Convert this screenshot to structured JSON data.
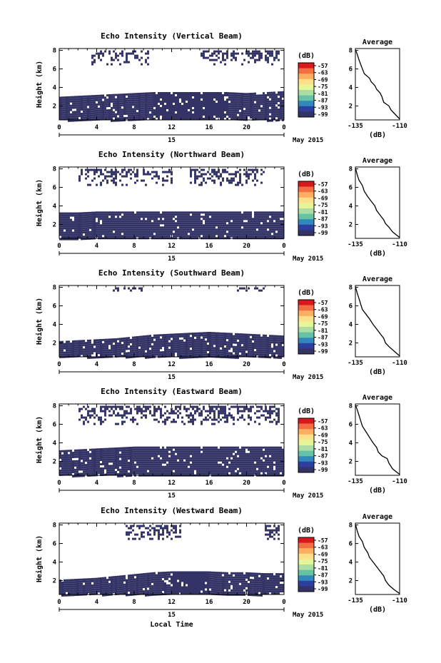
{
  "figure": {
    "xlabel": "Local Time",
    "date_label": "15",
    "month_label": "May 2015",
    "ylabel": "Height (km)",
    "colorbar_unit": "(dB)",
    "avg_title": "Average",
    "avg_xlabel": "(dB)"
  },
  "colorbar": {
    "tick_labels": [
      "-57",
      "-63",
      "-69",
      "-75",
      "-81",
      "-87",
      "-93",
      "-99"
    ],
    "colors": [
      "#d7191c",
      "#f46d43",
      "#fdae61",
      "#fee08b",
      "#e6f598",
      "#abdda4",
      "#66c2a5",
      "#3288bd",
      "#2c3e9e",
      "#333366"
    ]
  },
  "chart_data": [
    {
      "type": "heatmap",
      "title": "Echo Intensity (Vertical Beam)",
      "ylabel": "Height (km)",
      "x_ticks": [
        "0",
        "4",
        "8",
        "12",
        "16",
        "20",
        "0"
      ],
      "y_ticks": [
        "8",
        "6",
        "4",
        "2"
      ],
      "xlim": [
        0,
        24
      ],
      "ylim": [
        0.5,
        8.2
      ],
      "dominant_value_dB": -99,
      "low_layer_top_km": [
        3.0,
        3.1,
        3.2,
        3.3,
        3.4,
        3.5,
        3.5,
        3.5,
        3.5,
        3.5,
        3.4,
        3.5,
        3.6
      ],
      "upper_echo_km": [
        6.6,
        8.0
      ],
      "upper_echo_hours": [
        [
          3.5,
          9.5
        ],
        [
          15,
          23.5
        ]
      ],
      "average": {
        "title": "Average",
        "xlabel": "(dB)",
        "x_ticks": [
          "-135",
          "-110"
        ],
        "y_ticks": [
          "8",
          "6",
          "4",
          "2"
        ],
        "xlim": [
          -135,
          -110
        ],
        "ylim": [
          0.5,
          8.2
        ],
        "profile": [
          [
            0.6,
            -110
          ],
          [
            1.0,
            -112
          ],
          [
            1.6,
            -115
          ],
          [
            2.0,
            -116
          ],
          [
            2.4,
            -119
          ],
          [
            3.0,
            -120
          ],
          [
            3.4,
            -121
          ],
          [
            3.8,
            -123
          ],
          [
            4.2,
            -124
          ],
          [
            4.6,
            -126
          ],
          [
            5.0,
            -127
          ],
          [
            5.5,
            -130
          ],
          [
            6.0,
            -131
          ],
          [
            6.5,
            -132
          ],
          [
            7.0,
            -133
          ],
          [
            7.6,
            -134
          ],
          [
            8.1,
            -135
          ]
        ]
      }
    },
    {
      "type": "heatmap",
      "title": "Echo Intensity (Northward Beam)",
      "ylabel": "Height (km)",
      "x_ticks": [
        "0",
        "4",
        "8",
        "12",
        "16",
        "20",
        "0"
      ],
      "y_ticks": [
        "8",
        "6",
        "4",
        "2"
      ],
      "xlim": [
        0,
        24
      ],
      "ylim": [
        0.5,
        8.2
      ],
      "dominant_value_dB": -99,
      "low_layer_top_km": [
        3.3,
        3.3,
        3.4,
        3.4,
        3.4,
        3.4,
        3.4,
        3.4,
        3.4,
        3.4,
        3.4,
        3.4,
        3.4
      ],
      "upper_echo_km": [
        6.3,
        8.0
      ],
      "upper_echo_hours": [
        [
          2.0,
          12.0
        ],
        [
          14,
          22
        ]
      ],
      "average": {
        "title": "Average",
        "xlabel": "(dB)",
        "x_ticks": [
          "-135",
          "-110"
        ],
        "y_ticks": [
          "8",
          "6",
          "4",
          "2"
        ],
        "xlim": [
          -135,
          -110
        ],
        "ylim": [
          0.5,
          8.2
        ],
        "profile": [
          [
            0.6,
            -110
          ],
          [
            1.2,
            -114
          ],
          [
            1.7,
            -116
          ],
          [
            2.1,
            -118
          ],
          [
            2.5,
            -119
          ],
          [
            3.0,
            -121
          ],
          [
            3.5,
            -123
          ],
          [
            4.0,
            -124
          ],
          [
            4.5,
            -126
          ],
          [
            5.0,
            -128
          ],
          [
            5.6,
            -130
          ],
          [
            6.2,
            -131
          ],
          [
            6.8,
            -133
          ],
          [
            7.4,
            -134
          ],
          [
            8.1,
            -135
          ]
        ]
      }
    },
    {
      "type": "heatmap",
      "title": "Echo Intensity (Southward Beam)",
      "ylabel": "Height (km)",
      "x_ticks": [
        "0",
        "4",
        "8",
        "12",
        "16",
        "20",
        "0"
      ],
      "y_ticks": [
        "8",
        "6",
        "4",
        "2"
      ],
      "xlim": [
        0,
        24
      ],
      "ylim": [
        0.5,
        8.2
      ],
      "dominant_value_dB": -99,
      "low_layer_top_km": [
        2.2,
        2.3,
        2.4,
        2.5,
        2.7,
        2.9,
        3.0,
        3.1,
        3.2,
        3.1,
        3.0,
        2.9,
        2.8
      ],
      "upper_echo_km": [
        7.6,
        8.0
      ],
      "upper_echo_hours": [
        [
          5.0,
          9.0
        ],
        [
          19,
          22
        ]
      ],
      "average": {
        "title": "Average",
        "xlabel": "(dB)",
        "x_ticks": [
          "-135",
          "-110"
        ],
        "y_ticks": [
          "8",
          "6",
          "4",
          "2"
        ],
        "xlim": [
          -135,
          -110
        ],
        "ylim": [
          0.5,
          8.2
        ],
        "profile": [
          [
            0.6,
            -110
          ],
          [
            1.1,
            -113
          ],
          [
            1.6,
            -116
          ],
          [
            2.0,
            -118
          ],
          [
            2.5,
            -119
          ],
          [
            3.0,
            -121
          ],
          [
            3.5,
            -123
          ],
          [
            4.0,
            -125
          ],
          [
            4.6,
            -127
          ],
          [
            5.1,
            -129
          ],
          [
            5.6,
            -131
          ],
          [
            6.2,
            -132
          ],
          [
            6.8,
            -133
          ],
          [
            7.4,
            -134
          ],
          [
            8.1,
            -135
          ]
        ]
      }
    },
    {
      "type": "heatmap",
      "title": "Echo Intensity (Eastward Beam)",
      "ylabel": "Height (km)",
      "x_ticks": [
        "0",
        "4",
        "8",
        "12",
        "16",
        "20",
        "0"
      ],
      "y_ticks": [
        "8",
        "6",
        "4",
        "2"
      ],
      "xlim": [
        0,
        24
      ],
      "ylim": [
        0.5,
        8.2
      ],
      "dominant_value_dB": -99,
      "low_layer_top_km": [
        3.2,
        3.3,
        3.4,
        3.5,
        3.6,
        3.6,
        3.6,
        3.6,
        3.6,
        3.6,
        3.6,
        3.6,
        3.6
      ],
      "upper_echo_km": [
        6.0,
        8.0
      ],
      "upper_echo_hours": [
        [
          2.0,
          23.5
        ]
      ],
      "average": {
        "title": "Average",
        "xlabel": "(dB)",
        "x_ticks": [
          "-135",
          "-110"
        ],
        "y_ticks": [
          "8",
          "6",
          "4",
          "2"
        ],
        "xlim": [
          -135,
          -110
        ],
        "ylim": [
          0.5,
          8.2
        ],
        "profile": [
          [
            0.6,
            -110
          ],
          [
            1.2,
            -114
          ],
          [
            1.8,
            -116
          ],
          [
            2.3,
            -117
          ],
          [
            2.6,
            -120
          ],
          [
            3.0,
            -122
          ],
          [
            3.5,
            -123
          ],
          [
            4.0,
            -125
          ],
          [
            4.6,
            -127
          ],
          [
            5.2,
            -129
          ],
          [
            5.8,
            -131
          ],
          [
            6.4,
            -132
          ],
          [
            7.0,
            -133
          ],
          [
            7.6,
            -134
          ],
          [
            8.1,
            -135
          ]
        ]
      }
    },
    {
      "type": "heatmap",
      "title": "Echo Intensity (Westward Beam)",
      "ylabel": "Height (km)",
      "x_ticks": [
        "0",
        "4",
        "8",
        "12",
        "16",
        "20",
        "0"
      ],
      "y_ticks": [
        "8",
        "6",
        "4",
        "2"
      ],
      "xlim": [
        0,
        24
      ],
      "ylim": [
        0.5,
        8.2
      ],
      "dominant_value_dB": -99,
      "low_layer_top_km": [
        2.1,
        2.2,
        2.3,
        2.5,
        2.7,
        2.9,
        3.0,
        3.0,
        3.0,
        2.9,
        2.9,
        2.8,
        2.8
      ],
      "upper_echo_km": [
        6.5,
        8.0
      ],
      "upper_echo_hours": [
        [
          7.0,
          13.0
        ],
        [
          22,
          23.5
        ]
      ],
      "average": {
        "title": "Average",
        "xlabel": "(dB)",
        "x_ticks": [
          "-135",
          "-110"
        ],
        "y_ticks": [
          "8",
          "6",
          "4",
          "2"
        ],
        "xlim": [
          -135,
          -110
        ],
        "ylim": [
          0.5,
          8.2
        ],
        "profile": [
          [
            0.6,
            -110
          ],
          [
            1.0,
            -113
          ],
          [
            1.5,
            -116
          ],
          [
            2.0,
            -118
          ],
          [
            2.5,
            -119
          ],
          [
            3.0,
            -121
          ],
          [
            3.5,
            -123
          ],
          [
            4.0,
            -125
          ],
          [
            4.5,
            -127
          ],
          [
            5.0,
            -128
          ],
          [
            5.6,
            -130
          ],
          [
            6.2,
            -131
          ],
          [
            6.8,
            -133
          ],
          [
            7.4,
            -134
          ],
          [
            8.1,
            -135
          ]
        ]
      }
    }
  ]
}
